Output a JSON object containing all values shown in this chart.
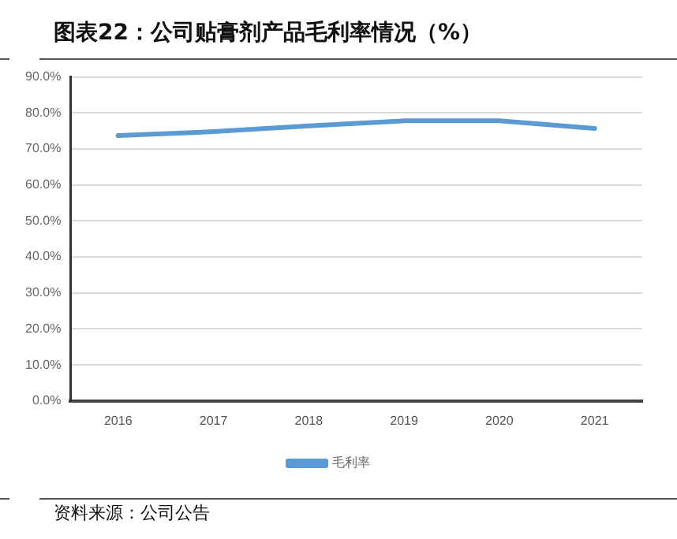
{
  "chart_data": {
    "type": "line",
    "title": "图表22：公司贴膏剂产品毛利率情况（%）",
    "categories": [
      "2016",
      "2017",
      "2018",
      "2019",
      "2020",
      "2021"
    ],
    "series": [
      {
        "name": "毛利率",
        "color": "#5b9bd5",
        "values": [
          73.7,
          74.8,
          76.4,
          77.8,
          77.8,
          75.7
        ]
      }
    ],
    "ylim": [
      0,
      90
    ],
    "yticks": [
      {
        "value": 0,
        "label": "0.0%"
      },
      {
        "value": 10,
        "label": "10.0%"
      },
      {
        "value": 20,
        "label": "20.0%"
      },
      {
        "value": 30,
        "label": "30.0%"
      },
      {
        "value": 40,
        "label": "40.0%"
      },
      {
        "value": 50,
        "label": "50.0%"
      },
      {
        "value": 60,
        "label": "60.0%"
      },
      {
        "value": 70,
        "label": "70.0%"
      },
      {
        "value": 80,
        "label": "80.0%"
      },
      {
        "value": 90,
        "label": "90.0%"
      }
    ],
    "grid": "y",
    "legend": "bottom",
    "marker": "none",
    "line_style": "solid",
    "annotations": [
      "资料来源：公司公告"
    ]
  }
}
